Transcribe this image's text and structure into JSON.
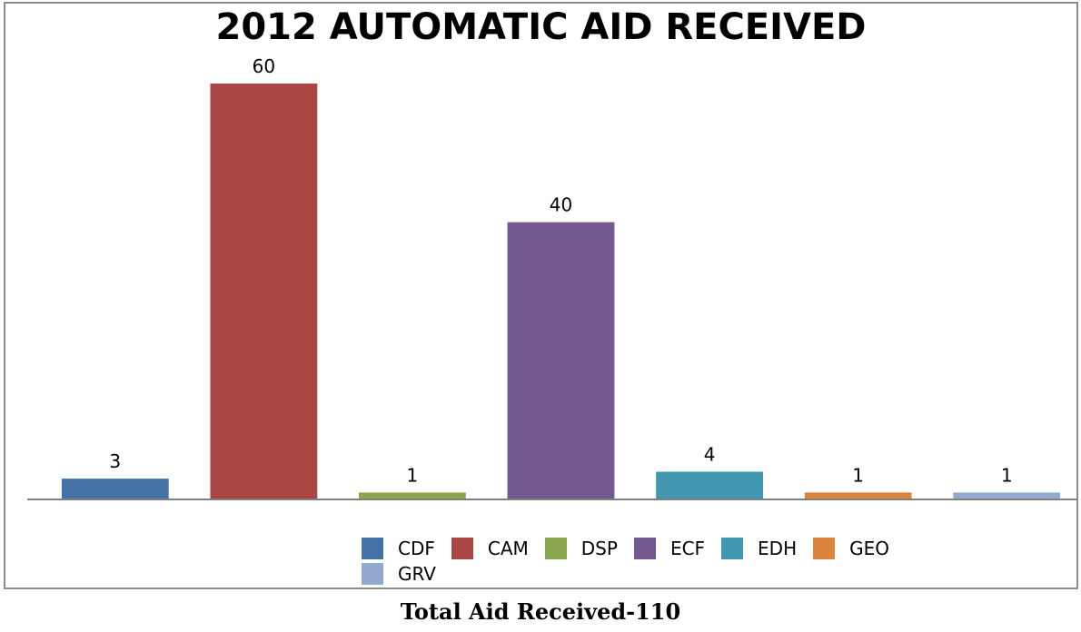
{
  "chart_data": {
    "type": "bar",
    "title": "2012 AUTOMATIC AID RECEIVED",
    "categories": [
      "CDF",
      "CAM",
      "DSP",
      "ECF",
      "EDH",
      "GEO",
      "GRV"
    ],
    "values": [
      3,
      60,
      1,
      40,
      4,
      1,
      1
    ],
    "colors": [
      "#4572a7",
      "#aa4643",
      "#89a54e",
      "#71588f",
      "#4198af",
      "#db843d",
      "#93a9cf"
    ],
    "ylim": [
      0,
      60
    ],
    "grid": false,
    "legend_position": "bottom"
  },
  "caption": "Total Aid Received-110"
}
